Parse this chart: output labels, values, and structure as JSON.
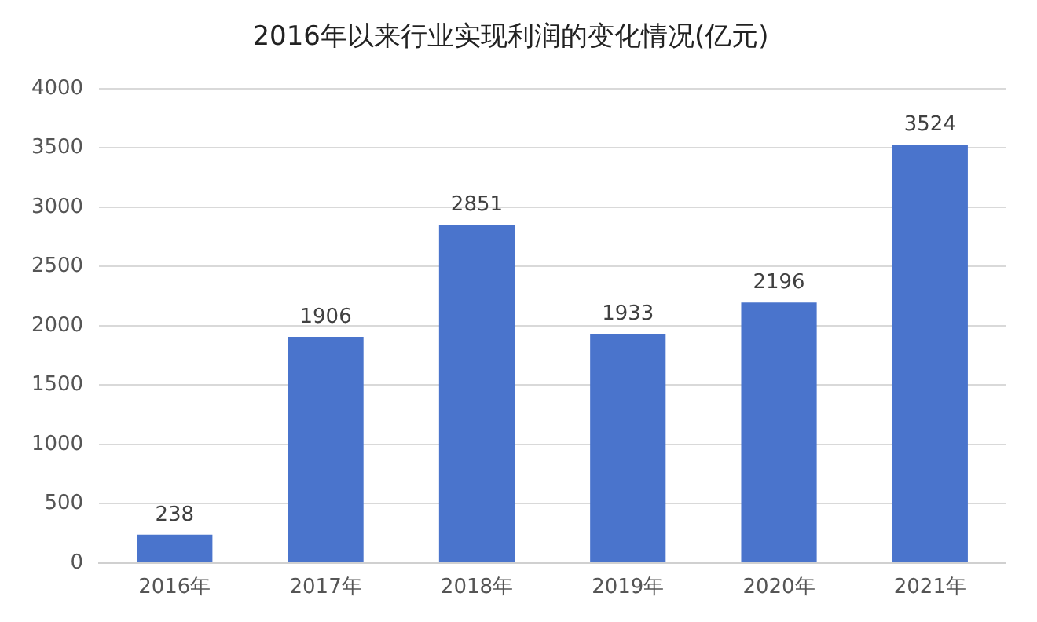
{
  "chart_data": {
    "type": "bar",
    "title": "2016年以来行业实现利润的变化情况(亿元)",
    "categories": [
      "2016年",
      "2017年",
      "2018年",
      "2019年",
      "2020年",
      "2021年"
    ],
    "values": [
      238,
      1906,
      2851,
      1933,
      2196,
      3524
    ],
    "color": "#4a74cc",
    "ylim": [
      0,
      4000
    ],
    "yticks": [
      0,
      500,
      1000,
      1500,
      2000,
      2500,
      3000,
      3500,
      4000
    ],
    "grid": "y",
    "data_labels": true,
    "legend": false
  }
}
